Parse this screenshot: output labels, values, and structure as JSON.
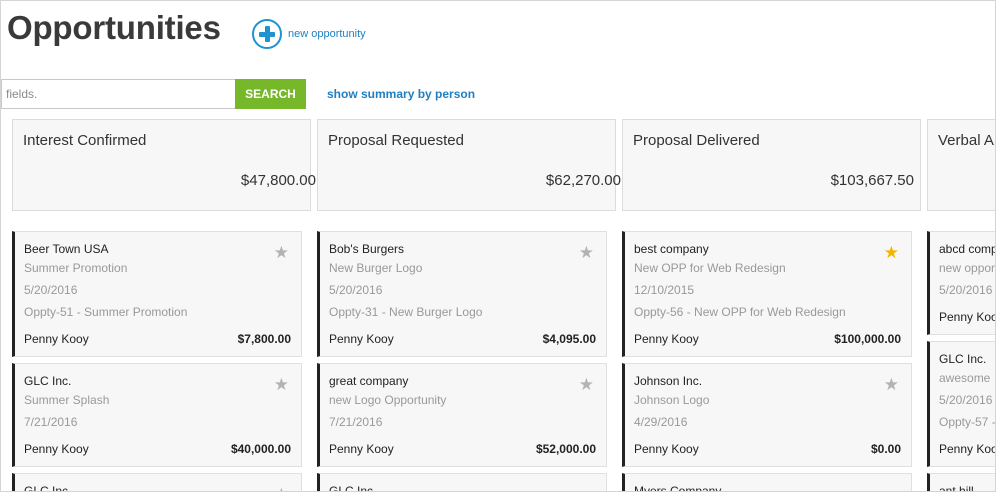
{
  "header": {
    "title": "Opportunities",
    "new_opportunity_label": "new opportunity"
  },
  "search": {
    "placeholder": "e fields.",
    "button_label": "SEARCH",
    "summary_link": "show summary by person"
  },
  "icons": {
    "new": "plus-circle-icon",
    "favorite": "star-icon"
  },
  "colors": {
    "accent_blue": "#1f93d0",
    "search_green": "#76b82a",
    "star_gold": "#f4b400",
    "star_gray": "#b3b3b3"
  },
  "stages": [
    {
      "name": "Interest Confirmed",
      "total": "$47,800.00"
    },
    {
      "name": "Proposal Requested",
      "total": "$62,270.00"
    },
    {
      "name": "Proposal Delivered",
      "total": "$103,667.50"
    },
    {
      "name": "Verbal A",
      "total": ""
    }
  ],
  "columns": [
    {
      "cards": [
        {
          "company": "Beer Town USA",
          "opportunity": "Summer Promotion",
          "date": "5/20/2016",
          "ref": "Oppty-51 - Summer Promotion",
          "owner": "Penny Kooy",
          "amount": "$7,800.00",
          "starred": false
        },
        {
          "company": "GLC Inc.",
          "opportunity": "Summer Splash",
          "date": "7/21/2016",
          "owner": "Penny Kooy",
          "amount": "$40,000.00",
          "starred": false
        },
        {
          "company": "GLC Inc."
        }
      ]
    },
    {
      "cards": [
        {
          "company": "Bob's Burgers",
          "opportunity": "New Burger Logo",
          "date": "5/20/2016",
          "ref": "Oppty-31 - New Burger Logo",
          "owner": "Penny Kooy",
          "amount": "$4,095.00",
          "starred": false
        },
        {
          "company": "great company",
          "opportunity": "new Logo Opportunity",
          "date": "7/21/2016",
          "owner": "Penny Kooy",
          "amount": "$52,000.00",
          "starred": false
        },
        {
          "company": "GLC Inc."
        }
      ]
    },
    {
      "cards": [
        {
          "company": "best company",
          "opportunity": "New OPP for Web Redesign",
          "date": "12/10/2015",
          "ref": "Oppty-56 - New OPP for Web Redesign",
          "owner": "Penny Kooy",
          "amount": "$100,000.00",
          "starred": true
        },
        {
          "company": "Johnson Inc.",
          "opportunity": "Johnson Logo",
          "date": "4/29/2016",
          "owner": "Penny Kooy",
          "amount": "$0.00",
          "starred": false
        },
        {
          "company": "Myers Company"
        }
      ]
    },
    {
      "cards": [
        {
          "company": "abcd comp",
          "opportunity": "new opport",
          "date": "5/20/2016",
          "owner": "Penny Koo"
        },
        {
          "company": "GLC Inc.",
          "opportunity": "awesome",
          "date": "5/20/2016",
          "ref": "Oppty-57 -",
          "owner": "Penny Koo"
        },
        {
          "company": "ant hill"
        }
      ]
    }
  ]
}
